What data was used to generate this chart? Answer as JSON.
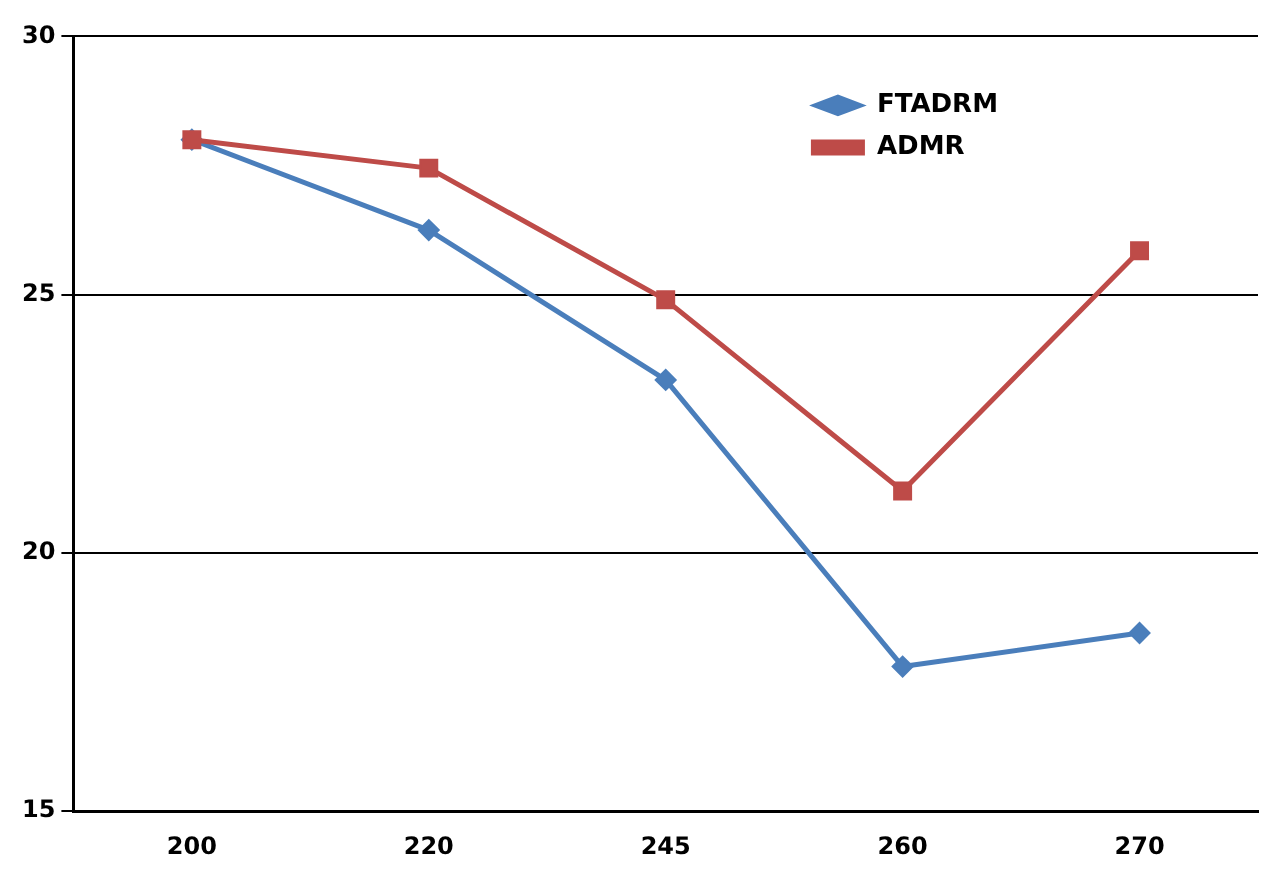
{
  "chart_data": {
    "type": "line",
    "categories": [
      "200",
      "220",
      "245",
      "260",
      "270"
    ],
    "series": [
      {
        "name": "FTADRM",
        "color": "#4a7ebb",
        "marker": "diamond",
        "values": [
          28.0,
          26.25,
          23.35,
          17.8,
          18.45
        ]
      },
      {
        "name": "ADMR",
        "color": "#be4b48",
        "marker": "square",
        "values": [
          28.0,
          27.45,
          24.9,
          21.2,
          25.85
        ]
      }
    ],
    "ylim": [
      15,
      30
    ],
    "yticks": [
      15,
      20,
      25,
      30
    ],
    "grid": "y",
    "legend": "top right"
  }
}
